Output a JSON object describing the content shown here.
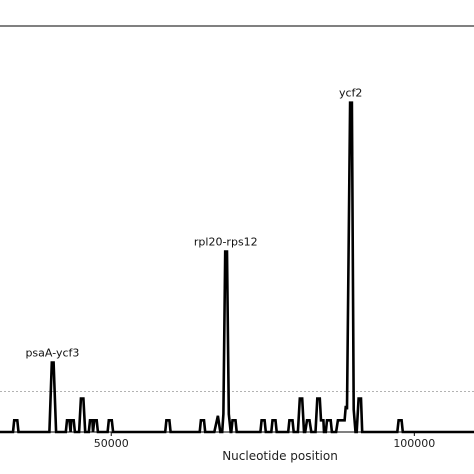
{
  "chart_data": {
    "type": "line",
    "title": "",
    "xlabel": "Nucleotide position",
    "ylabel": "",
    "xlim": [
      30000,
      111000
    ],
    "ylim": [
      0,
      0.45
    ],
    "grid": false,
    "threshold": 0.045,
    "x_ticks": [
      {
        "value": 50000,
        "label": "50000"
      },
      {
        "value": 100000,
        "label": "100000"
      }
    ],
    "series": [
      {
        "points": [
          [
            30000,
            0
          ],
          [
            30200,
            0
          ],
          [
            30400,
            0.013
          ],
          [
            30800,
            0.013
          ],
          [
            31000,
            0
          ],
          [
            33800,
            0
          ],
          [
            34000,
            0.013
          ],
          [
            34500,
            0.013
          ],
          [
            34700,
            0
          ],
          [
            39800,
            0
          ],
          [
            40200,
            0.077
          ],
          [
            40500,
            0.077
          ],
          [
            40900,
            0
          ],
          [
            42500,
            0
          ],
          [
            42700,
            0.013
          ],
          [
            43100,
            0.013
          ],
          [
            43300,
            0
          ],
          [
            43400,
            0.013
          ],
          [
            43800,
            0.013
          ],
          [
            44000,
            0
          ],
          [
            44700,
            0
          ],
          [
            45000,
            0.037
          ],
          [
            45400,
            0.037
          ],
          [
            45700,
            0
          ],
          [
            46300,
            0
          ],
          [
            46500,
            0.013
          ],
          [
            46900,
            0.013
          ],
          [
            47000,
            0
          ],
          [
            47200,
            0.013
          ],
          [
            47600,
            0.013
          ],
          [
            47800,
            0
          ],
          [
            49400,
            0
          ],
          [
            49600,
            0.013
          ],
          [
            50100,
            0.013
          ],
          [
            50300,
            0
          ],
          [
            58900,
            0
          ],
          [
            59100,
            0.013
          ],
          [
            59600,
            0.013
          ],
          [
            59800,
            0
          ],
          [
            64600,
            0
          ],
          [
            64800,
            0.013
          ],
          [
            65300,
            0.013
          ],
          [
            65500,
            0
          ],
          [
            67000,
            0
          ],
          [
            67600,
            0.018
          ],
          [
            68000,
            0
          ],
          [
            68300,
            0
          ],
          [
            68500,
            0.02
          ],
          [
            68800,
            0.2
          ],
          [
            69100,
            0.2
          ],
          [
            69400,
            0.02
          ],
          [
            69700,
            0
          ],
          [
            69800,
            0
          ],
          [
            70000,
            0.013
          ],
          [
            70500,
            0.013
          ],
          [
            70700,
            0
          ],
          [
            74600,
            0
          ],
          [
            74800,
            0.013
          ],
          [
            75300,
            0.013
          ],
          [
            75500,
            0
          ],
          [
            76400,
            0
          ],
          [
            76600,
            0.013
          ],
          [
            77100,
            0.013
          ],
          [
            77300,
            0
          ],
          [
            79200,
            0
          ],
          [
            79400,
            0.013
          ],
          [
            79900,
            0.013
          ],
          [
            80100,
            0
          ],
          [
            80800,
            0
          ],
          [
            81100,
            0.037
          ],
          [
            81500,
            0.037
          ],
          [
            81800,
            0
          ],
          [
            82000,
            0
          ],
          [
            82300,
            0.013
          ],
          [
            82700,
            0.013
          ],
          [
            83000,
            0
          ],
          [
            83700,
            0
          ],
          [
            84000,
            0.037
          ],
          [
            84400,
            0.037
          ],
          [
            84600,
            0.013
          ],
          [
            85000,
            0.013
          ],
          [
            85100,
            0
          ],
          [
            85400,
            0
          ],
          [
            85600,
            0.013
          ],
          [
            86200,
            0.013
          ],
          [
            86400,
            0
          ],
          [
            87100,
            0
          ],
          [
            87400,
            0.013
          ],
          [
            88000,
            0.013
          ],
          [
            88500,
            0.013
          ],
          [
            88700,
            0.029
          ],
          [
            88900,
            0.025
          ],
          [
            89400,
            0.365
          ],
          [
            89700,
            0.365
          ],
          [
            90000,
            0.025
          ],
          [
            90300,
            0
          ],
          [
            90500,
            0
          ],
          [
            90800,
            0.037
          ],
          [
            91200,
            0.037
          ],
          [
            91400,
            0
          ],
          [
            97200,
            0
          ],
          [
            97400,
            0.013
          ],
          [
            97900,
            0.013
          ],
          [
            98100,
            0
          ],
          [
            111000,
            0
          ]
        ]
      }
    ],
    "annotations": [
      {
        "label": "psaA-ycf3",
        "x": 40300,
        "y": 0.077
      },
      {
        "label": "rpl20-rps12",
        "x": 68900,
        "y": 0.2
      },
      {
        "label": "ycf2",
        "x": 89500,
        "y": 0.365
      }
    ]
  }
}
